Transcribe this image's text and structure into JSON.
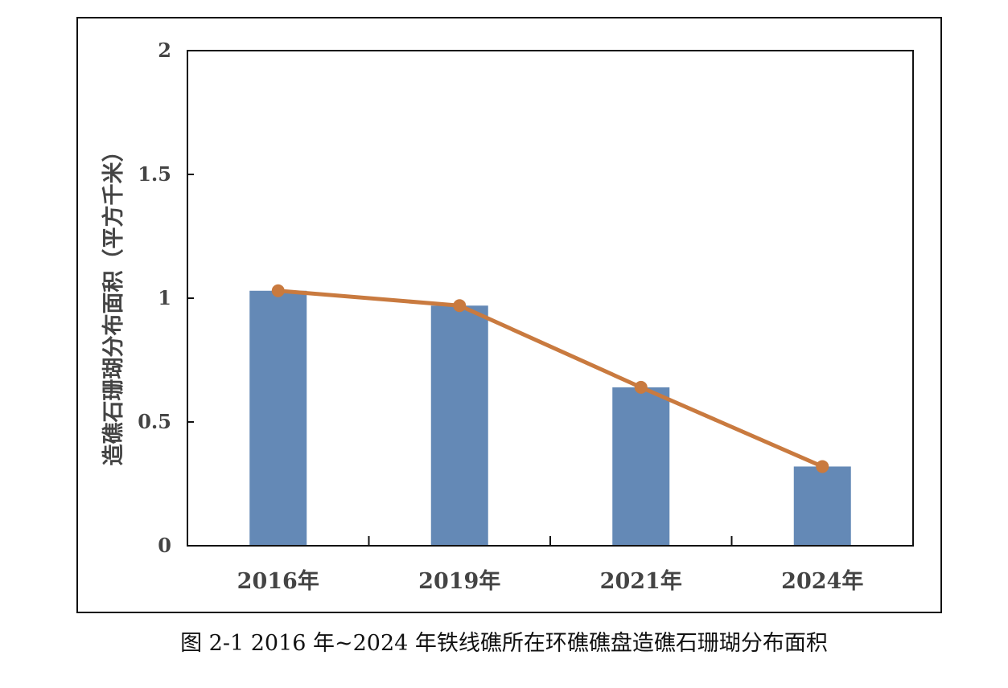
{
  "chart_data": {
    "type": "bar",
    "categories": [
      "2016年",
      "2019年",
      "2021年",
      "2024年"
    ],
    "series": [
      {
        "type": "bar",
        "values": [
          1.03,
          0.97,
          0.64,
          0.32
        ],
        "color": "#6489b6"
      },
      {
        "type": "line",
        "values": [
          1.03,
          0.97,
          0.64,
          0.32
        ],
        "color": "#c97a3f"
      }
    ],
    "ylabel": "造礁石珊瑚分布面积（平方千米）",
    "ylim": [
      0,
      2
    ],
    "yticks": [
      0,
      0.5,
      1,
      1.5,
      2
    ],
    "ytick_labels": [
      "0",
      "0.5",
      "1",
      "1.5",
      "2"
    ],
    "grid": false,
    "legend": "none"
  },
  "caption": "图 2-1 2016 年~2024 年铁线礁所在环礁礁盘造礁石珊瑚分布面积"
}
